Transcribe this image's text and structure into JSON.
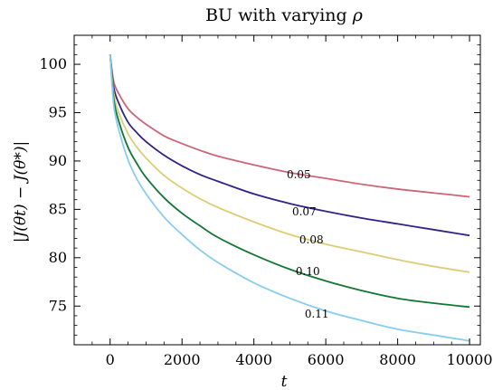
{
  "chart_data": {
    "type": "line",
    "title_prefix": "BU with varying ",
    "title_symbol": "ρ",
    "xlabel": "t",
    "ylabel": "|J(θt) − J(θ*)|",
    "xlim": [
      -1000,
      10300
    ],
    "ylim": [
      71,
      103
    ],
    "xticks": [
      "0",
      "2000",
      "4000",
      "6000",
      "8000",
      "10000"
    ],
    "xtick_values": [
      0,
      2000,
      4000,
      6000,
      8000,
      10000
    ],
    "yticks": [
      "75",
      "80",
      "85",
      "90",
      "95",
      "100"
    ],
    "ytick_values": [
      75,
      80,
      85,
      90,
      95,
      100
    ],
    "grid": false,
    "x": [
      0,
      100,
      250,
      500,
      750,
      1000,
      1500,
      2000,
      2500,
      3000,
      4000,
      5000,
      6000,
      7000,
      8000,
      9000,
      10000
    ],
    "series": [
      {
        "name": "0.05",
        "color": "#cc6677",
        "values": [
          101.0,
          98.2,
          96.9,
          95.4,
          94.5,
          93.8,
          92.6,
          91.8,
          91.1,
          90.5,
          89.6,
          88.8,
          88.2,
          87.6,
          87.1,
          86.7,
          86.3
        ],
        "label_x": 5250,
        "label_y": 88.2
      },
      {
        "name": "0.07",
        "color": "#332288",
        "values": [
          101.0,
          97.6,
          95.9,
          94.0,
          92.9,
          92.0,
          90.6,
          89.5,
          88.6,
          87.9,
          86.6,
          85.6,
          84.8,
          84.1,
          83.5,
          82.9,
          82.3
        ],
        "label_x": 5400,
        "label_y": 84.4
      },
      {
        "name": "0.08",
        "color": "#ddcc77",
        "values": [
          101.0,
          97.0,
          94.9,
          92.8,
          91.4,
          90.3,
          88.5,
          87.2,
          86.1,
          85.2,
          83.7,
          82.4,
          81.4,
          80.6,
          79.8,
          79.1,
          78.5
        ],
        "label_x": 5600,
        "label_y": 81.5
      },
      {
        "name": "0.10",
        "color": "#117733",
        "values": [
          101.0,
          96.4,
          94.0,
          91.4,
          89.7,
          88.3,
          86.2,
          84.6,
          83.3,
          82.1,
          80.3,
          78.8,
          77.6,
          76.6,
          75.8,
          75.3,
          74.9
        ],
        "label_x": 5500,
        "label_y": 78.2
      },
      {
        "name": "0.11",
        "color": "#88ccee",
        "values": [
          101.0,
          95.8,
          93.1,
          90.1,
          88.1,
          86.6,
          84.2,
          82.4,
          80.8,
          79.5,
          77.4,
          75.8,
          74.5,
          73.5,
          72.6,
          72.0,
          71.4
        ],
        "label_x": 5750,
        "label_y": 73.8
      }
    ]
  }
}
